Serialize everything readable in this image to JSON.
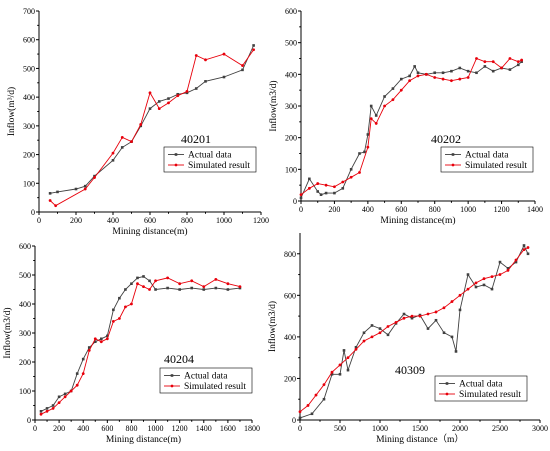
{
  "chart_data": [
    {
      "type": "line",
      "code_label": "40201",
      "xlabel": "Mining distance(m)",
      "ylabel": "Inflow(m³/d)",
      "xlim": [
        0,
        1200
      ],
      "ylim": [
        0,
        700
      ],
      "xticks": [
        0,
        200,
        400,
        600,
        800,
        1000,
        1200
      ],
      "yticks": [
        0,
        100,
        200,
        300,
        400,
        500,
        600,
        700
      ],
      "legend": "center-right",
      "series": [
        {
          "name": "Actual data",
          "color": "#404040",
          "marker": "square",
          "x": [
            60,
            100,
            200,
            250,
            300,
            400,
            450,
            500,
            550,
            600,
            650,
            700,
            750,
            800,
            850,
            900,
            1000,
            1100,
            1160
          ],
          "y": [
            65,
            70,
            80,
            90,
            125,
            180,
            225,
            245,
            300,
            360,
            385,
            395,
            410,
            415,
            430,
            455,
            470,
            495,
            580
          ]
        },
        {
          "name": "Simulated result",
          "color": "#e8000b",
          "marker": "circle",
          "x": [
            60,
            90,
            250,
            300,
            400,
            450,
            500,
            550,
            600,
            650,
            700,
            750,
            800,
            850,
            900,
            1000,
            1100,
            1160
          ],
          "y": [
            40,
            22,
            80,
            120,
            205,
            260,
            245,
            305,
            415,
            360,
            380,
            405,
            420,
            545,
            530,
            550,
            510,
            565
          ]
        }
      ]
    },
    {
      "type": "line",
      "code_label": "40202",
      "xlabel": "Mining distance(m)",
      "ylabel": "Inflow(m3/d)",
      "xlim": [
        0,
        1400
      ],
      "ylim": [
        0,
        600
      ],
      "xticks": [
        0,
        200,
        400,
        600,
        800,
        1000,
        1200,
        1400
      ],
      "yticks": [
        0,
        100,
        200,
        300,
        400,
        500,
        600
      ],
      "legend": "center-right",
      "series": [
        {
          "name": "Actual data",
          "color": "#404040",
          "marker": "square",
          "x": [
            0,
            50,
            100,
            120,
            150,
            200,
            250,
            300,
            350,
            380,
            400,
            420,
            450,
            500,
            550,
            600,
            650,
            680,
            700,
            750,
            800,
            850,
            900,
            950,
            1000,
            1050,
            1100,
            1150,
            1200,
            1250,
            1300,
            1320
          ],
          "y": [
            10,
            70,
            30,
            20,
            25,
            25,
            40,
            100,
            150,
            155,
            210,
            300,
            270,
            330,
            355,
            385,
            395,
            425,
            405,
            400,
            405,
            405,
            410,
            420,
            410,
            405,
            425,
            410,
            420,
            415,
            430,
            440
          ]
        },
        {
          "name": "Simulated result",
          "color": "#e8000b",
          "marker": "circle",
          "x": [
            0,
            50,
            100,
            150,
            200,
            250,
            300,
            350,
            400,
            420,
            450,
            500,
            550,
            600,
            650,
            700,
            750,
            800,
            850,
            900,
            950,
            1000,
            1050,
            1100,
            1150,
            1200,
            1250,
            1300,
            1320
          ],
          "y": [
            20,
            40,
            55,
            50,
            45,
            60,
            75,
            90,
            170,
            260,
            245,
            300,
            320,
            350,
            380,
            395,
            400,
            390,
            385,
            380,
            385,
            390,
            450,
            440,
            440,
            420,
            450,
            440,
            445
          ]
        }
      ]
    },
    {
      "type": "line",
      "code_label": "40204",
      "xlabel": "Mining distance(m)",
      "ylabel": "Inflow(m3/d)",
      "xlim": [
        0,
        1800
      ],
      "ylim": [
        0,
        600
      ],
      "xticks": [
        0,
        200,
        400,
        600,
        800,
        1000,
        1200,
        1400,
        1600,
        1800
      ],
      "yticks": [
        0,
        100,
        200,
        300,
        400,
        500,
        600
      ],
      "legend": "bottom-right",
      "series": [
        {
          "name": "Actual data",
          "color": "#404040",
          "marker": "square",
          "x": [
            50,
            100,
            150,
            200,
            250,
            300,
            350,
            400,
            450,
            500,
            550,
            600,
            650,
            700,
            750,
            800,
            850,
            900,
            950,
            1000,
            1100,
            1200,
            1300,
            1400,
            1500,
            1600,
            1700
          ],
          "y": [
            30,
            40,
            50,
            80,
            90,
            100,
            160,
            210,
            250,
            270,
            280,
            290,
            380,
            420,
            450,
            470,
            490,
            495,
            480,
            450,
            455,
            450,
            455,
            450,
            455,
            450,
            455
          ]
        },
        {
          "name": "Simulated result",
          "color": "#e8000b",
          "marker": "circle",
          "x": [
            50,
            100,
            150,
            200,
            250,
            300,
            350,
            400,
            450,
            500,
            550,
            600,
            650,
            700,
            750,
            800,
            850,
            900,
            950,
            1000,
            1100,
            1200,
            1300,
            1400,
            1500,
            1600,
            1700
          ],
          "y": [
            20,
            30,
            40,
            60,
            80,
            100,
            120,
            160,
            240,
            280,
            270,
            280,
            340,
            350,
            390,
            400,
            470,
            460,
            450,
            480,
            490,
            470,
            480,
            460,
            485,
            470,
            460
          ]
        }
      ]
    },
    {
      "type": "line",
      "code_label": "40309",
      "xlabel": "Mining distance（m）",
      "ylabel": "Inflow(m3/d)",
      "xlim": [
        0,
        3000
      ],
      "ylim": [
        0,
        900
      ],
      "xticks": [
        0,
        500,
        1000,
        1500,
        2000,
        2500,
        3000
      ],
      "yticks": [
        0,
        200,
        400,
        600,
        800
      ],
      "legend": "bottom-right",
      "series": [
        {
          "name": "Actual data",
          "color": "#404040",
          "marker": "square",
          "x": [
            0,
            150,
            300,
            400,
            500,
            550,
            600,
            700,
            800,
            900,
            1000,
            1100,
            1200,
            1300,
            1400,
            1500,
            1600,
            1700,
            1800,
            1900,
            1950,
            2000,
            2100,
            2200,
            2300,
            2400,
            2500,
            2600,
            2700,
            2800,
            2850
          ],
          "y": [
            10,
            30,
            100,
            220,
            220,
            335,
            240,
            350,
            420,
            455,
            440,
            410,
            465,
            510,
            490,
            505,
            440,
            480,
            420,
            400,
            330,
            530,
            700,
            640,
            650,
            630,
            760,
            730,
            760,
            840,
            800
          ]
        },
        {
          "name": "Simulated result",
          "color": "#e8000b",
          "marker": "circle",
          "x": [
            0,
            100,
            200,
            300,
            400,
            500,
            600,
            700,
            800,
            900,
            1000,
            1100,
            1200,
            1300,
            1400,
            1500,
            1600,
            1700,
            1800,
            1900,
            2000,
            2100,
            2200,
            2300,
            2400,
            2500,
            2600,
            2700,
            2800,
            2850
          ],
          "y": [
            40,
            70,
            120,
            170,
            230,
            265,
            300,
            340,
            380,
            400,
            420,
            450,
            470,
            490,
            500,
            500,
            510,
            520,
            540,
            570,
            600,
            630,
            660,
            680,
            690,
            700,
            720,
            770,
            820,
            830
          ]
        }
      ]
    }
  ]
}
